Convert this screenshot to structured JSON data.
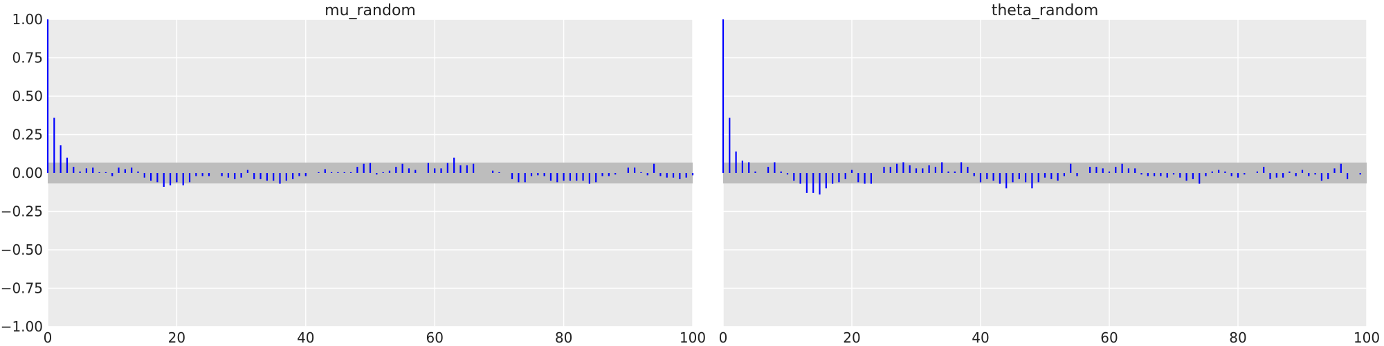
{
  "figure": {
    "accent_color": "#0000ff",
    "background_color": "#ebebeb",
    "band_color": "#bdbdbd"
  },
  "chart_data": [
    {
      "type": "bar",
      "kind": "autocorrelation",
      "title": "mu_random",
      "xlabel": "",
      "ylabel": "",
      "xlim": [
        0,
        100
      ],
      "ylim": [
        -1.0,
        1.0
      ],
      "xticks": [
        0,
        20,
        40,
        60,
        80,
        100
      ],
      "yticks": [
        -1.0,
        -0.75,
        -0.5,
        -0.25,
        0.0,
        0.25,
        0.5,
        0.75,
        1.0
      ],
      "ytick_labels": [
        "−1.00",
        "−0.75",
        "−0.50",
        "−0.25",
        "0.00",
        "0.25",
        "0.50",
        "0.75",
        "1.00"
      ],
      "grid": true,
      "confidence_band": 0.068,
      "series": [
        {
          "values": [
            1.0,
            0.36,
            0.18,
            0.1,
            0.04,
            0.01,
            0.03,
            0.035,
            0.005,
            0.005,
            -0.02,
            0.035,
            0.025,
            0.035,
            0.01,
            -0.03,
            -0.05,
            -0.06,
            -0.09,
            -0.08,
            -0.06,
            -0.08,
            -0.06,
            -0.02,
            -0.02,
            -0.02,
            0.0,
            -0.02,
            -0.03,
            -0.04,
            -0.03,
            0.02,
            -0.04,
            -0.04,
            -0.05,
            -0.05,
            -0.07,
            -0.05,
            -0.04,
            -0.02,
            -0.02,
            0.0,
            0.005,
            0.025,
            0.005,
            0.005,
            0.005,
            0.005,
            0.04,
            0.06,
            0.065,
            -0.01,
            0.005,
            0.015,
            0.04,
            0.06,
            0.03,
            0.02,
            0.0,
            0.065,
            0.03,
            0.03,
            0.065,
            0.1,
            0.05,
            0.05,
            0.06,
            0.0,
            0.0,
            0.015,
            0.005,
            0.0,
            -0.04,
            -0.06,
            -0.06,
            -0.02,
            -0.015,
            -0.02,
            -0.05,
            -0.06,
            -0.05,
            -0.05,
            -0.05,
            -0.05,
            -0.07,
            -0.06,
            -0.02,
            -0.02,
            -0.01,
            0.0,
            0.035,
            0.035,
            0.005,
            -0.015,
            0.06,
            -0.02,
            -0.03,
            -0.03,
            -0.04,
            -0.03,
            -0.015
          ]
        }
      ]
    },
    {
      "type": "bar",
      "kind": "autocorrelation",
      "title": "theta_random",
      "xlabel": "",
      "ylabel": "",
      "xlim": [
        0,
        100
      ],
      "ylim": [
        -1.0,
        1.0
      ],
      "xticks": [
        0,
        20,
        40,
        60,
        80,
        100
      ],
      "yticks": [
        -1.0,
        -0.75,
        -0.5,
        -0.25,
        0.0,
        0.25,
        0.5,
        0.75,
        1.0
      ],
      "grid": true,
      "confidence_band": 0.068,
      "series": [
        {
          "values": [
            1.0,
            0.36,
            0.14,
            0.08,
            0.07,
            0.01,
            0.0,
            0.04,
            0.07,
            0.01,
            -0.01,
            -0.05,
            -0.07,
            -0.13,
            -0.13,
            -0.14,
            -0.1,
            -0.07,
            -0.06,
            -0.04,
            0.02,
            -0.06,
            -0.07,
            -0.07,
            0.0,
            0.04,
            0.04,
            0.06,
            0.07,
            0.05,
            0.03,
            0.03,
            0.05,
            0.04,
            0.07,
            0.01,
            0.01,
            0.07,
            0.04,
            -0.02,
            -0.06,
            -0.04,
            -0.05,
            -0.07,
            -0.1,
            -0.06,
            -0.04,
            -0.06,
            -0.1,
            -0.06,
            -0.03,
            -0.04,
            -0.05,
            -0.02,
            0.06,
            -0.02,
            0.0,
            0.04,
            0.04,
            0.03,
            0.01,
            0.04,
            0.06,
            0.03,
            0.03,
            -0.01,
            -0.02,
            -0.02,
            -0.02,
            -0.03,
            -0.01,
            -0.03,
            -0.05,
            -0.04,
            -0.07,
            -0.02,
            0.01,
            0.02,
            0.01,
            -0.02,
            -0.03,
            -0.01,
            0.0,
            0.01,
            0.04,
            -0.04,
            -0.03,
            -0.03,
            0.01,
            -0.02,
            0.02,
            -0.02,
            -0.01,
            -0.05,
            -0.04,
            0.03,
            0.06,
            -0.04,
            0.0,
            -0.01,
            0.0
          ]
        }
      ]
    }
  ]
}
